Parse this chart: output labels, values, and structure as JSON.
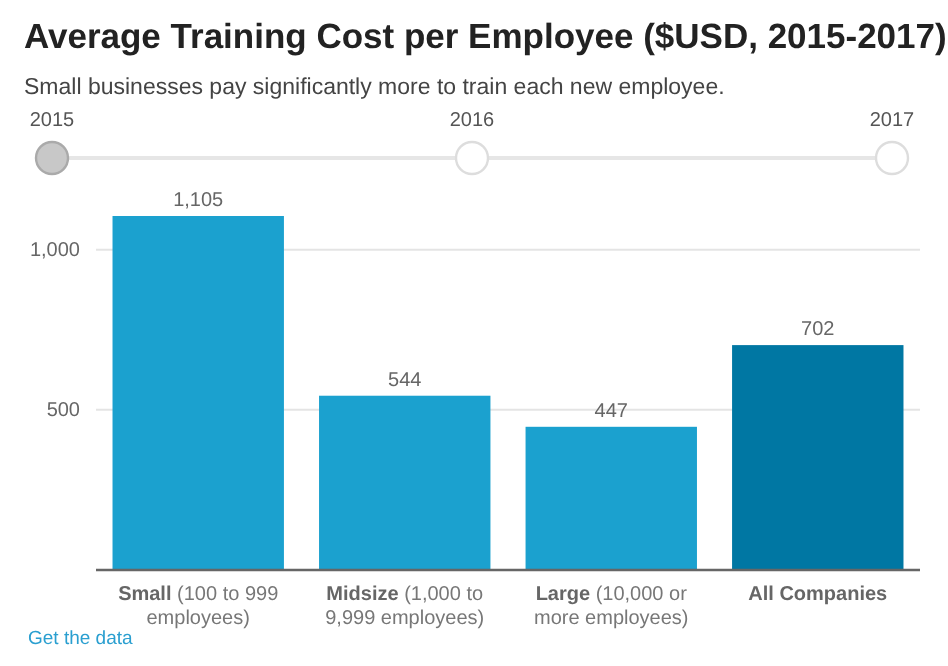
{
  "chart_data": [
    {
      "type": "bar",
      "title": "Average Training Cost per Employee ($USD, 2015-2017)",
      "subtitle": "Small businesses pay significantly more to train each new employee.",
      "categories": [
        "Small (100 to 999 employees)",
        "Midsize (1,000 to 9,999 employees)",
        "Large (10,000 or more employees)",
        "All Companies"
      ],
      "values": [
        1105,
        544,
        447,
        702
      ],
      "colors": [
        "#1ba1cf",
        "#1ba1cf",
        "#1ba1cf",
        "#0077a3"
      ],
      "ylim": [
        0,
        1105
      ],
      "yticks": [
        {
          "value": 500,
          "label": "500"
        },
        {
          "value": 1000,
          "label": "1,000"
        }
      ],
      "value_labels": [
        "1,105",
        "544",
        "447",
        "702"
      ],
      "grid": "y",
      "annotations": [
        "Get the data"
      ]
    },
    {
      "type": "other",
      "categories": [
        "2015",
        "2016",
        "2017"
      ]
    }
  ]
}
